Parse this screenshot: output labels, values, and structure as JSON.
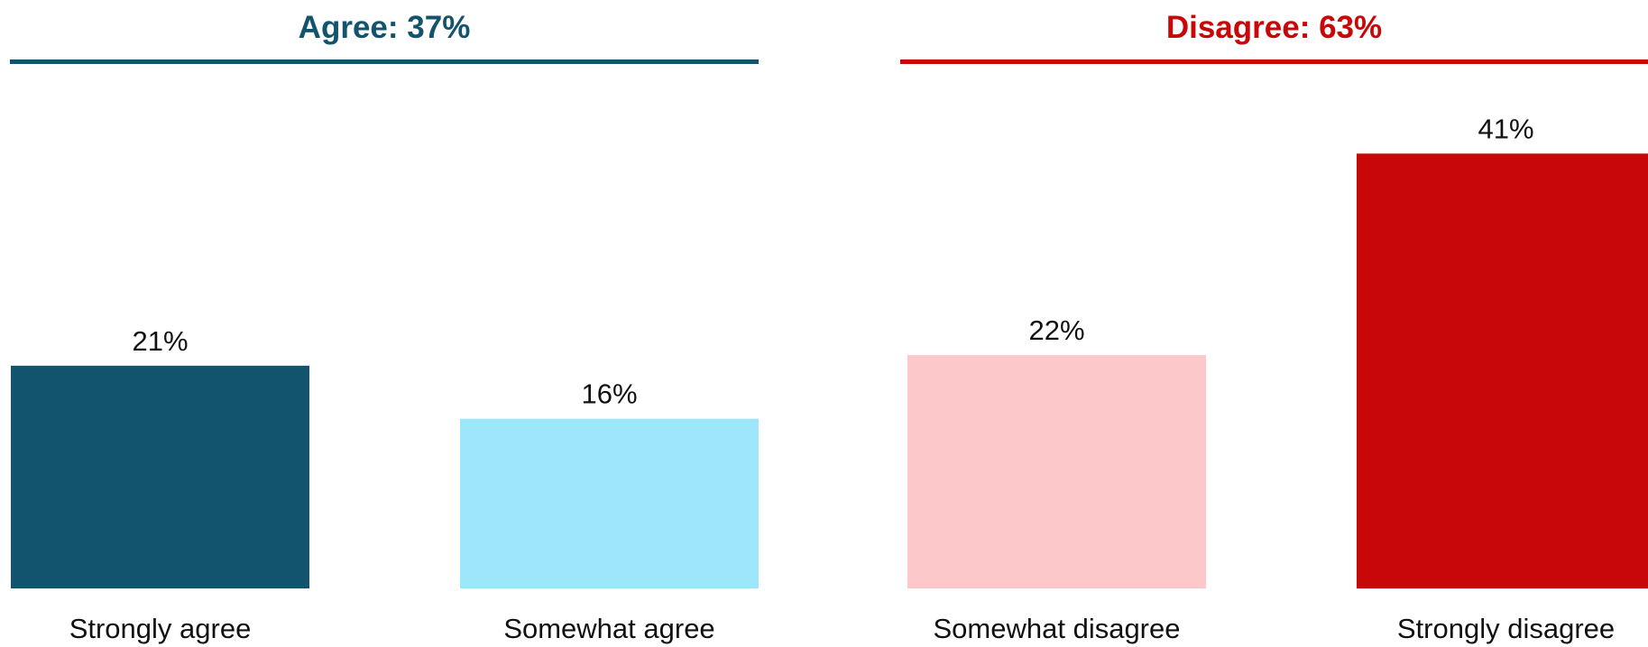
{
  "chart_data": {
    "type": "bar",
    "groups": [
      {
        "title": "Agree: 37%",
        "color": "#12546E"
      },
      {
        "title": "Disagree: 63%",
        "color": "#C80808"
      }
    ],
    "categories": [
      "Strongly agree",
      "Somewhat agree",
      "Somewhat disagree",
      "Strongly disagree"
    ],
    "values": [
      21,
      16,
      22,
      41
    ],
    "value_labels": [
      "21%",
      "16%",
      "22%",
      "41%"
    ],
    "bar_colors": [
      "#12546E",
      "#9EE7FB",
      "#FDC8C9",
      "#C80808"
    ],
    "group_of_category": [
      0,
      0,
      1,
      1
    ],
    "ylim": [
      0,
      50
    ],
    "grid": false,
    "legend": "none"
  }
}
